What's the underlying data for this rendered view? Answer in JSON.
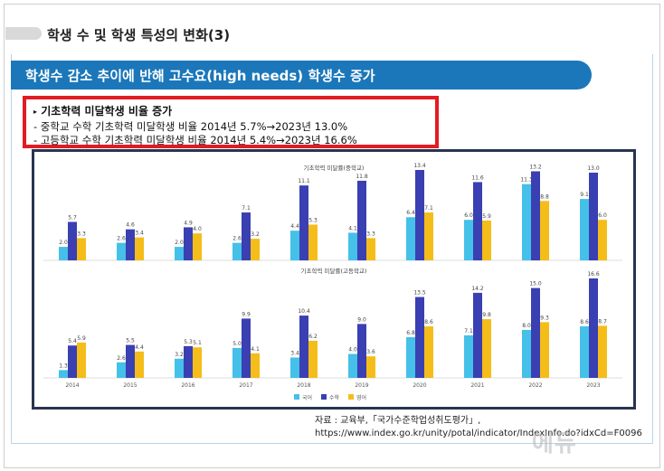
{
  "page": {
    "title": "학생 수 및 학생 특성의 변화(3)",
    "banner": "학생수 감소 추이에 반해 고수요(high needs) 학생수 증가"
  },
  "highlight": {
    "heading": "기초학력 미달학생 비율 증가",
    "line1": "- 중학교 수학 기초학력 미달학생 비율 2014년 5.7%→2023년 13.0%",
    "line2": "- 고등학교 수학 기초학력 미달학생 비율 2014년 5.4%→2023년 16.6%"
  },
  "source": {
    "line1": "자료 : 교육부,「국가수준학업성취도평가」,",
    "line2": "https://www.index.go.kr/unity/potal/indicator/IndexInfo.do?idxCd=F0096"
  },
  "watermark": "에듀",
  "colors": {
    "korean": "#45c0e8",
    "math": "#3a3fb2",
    "english": "#f5bd1a",
    "banner": "#1b77b9",
    "highlight_border": "#e31b23"
  },
  "chart_data": [
    {
      "type": "bar",
      "title": "기초학력 미달률(중학교)",
      "categories": [
        "2014",
        "2015",
        "2016",
        "2017",
        "2018",
        "2019",
        "2020",
        "2021",
        "2022",
        "2023"
      ],
      "series": [
        {
          "name": "국어",
          "values": [
            2.0,
            2.6,
            2.0,
            2.6,
            4.4,
            4.1,
            6.4,
            6.0,
            11.3,
            9.1
          ]
        },
        {
          "name": "수학",
          "values": [
            5.7,
            4.6,
            4.9,
            7.1,
            11.1,
            11.8,
            13.4,
            11.6,
            13.2,
            13.0
          ]
        },
        {
          "name": "영어",
          "values": [
            3.3,
            3.4,
            4.0,
            3.2,
            5.3,
            3.3,
            7.1,
            5.9,
            8.8,
            6.0
          ]
        }
      ]
    },
    {
      "type": "bar",
      "title": "기초학력 미달률(고등학교)",
      "categories": [
        "2014",
        "2015",
        "2016",
        "2017",
        "2018",
        "2019",
        "2020",
        "2021",
        "2022",
        "2023"
      ],
      "series": [
        {
          "name": "국어",
          "values": [
            1.3,
            2.6,
            3.2,
            5.0,
            3.4,
            4.0,
            6.8,
            7.1,
            8.0,
            8.6
          ]
        },
        {
          "name": "수학",
          "values": [
            5.4,
            5.5,
            5.3,
            9.9,
            10.4,
            9.0,
            13.5,
            14.2,
            15.0,
            16.6
          ]
        },
        {
          "name": "영어",
          "values": [
            5.9,
            4.4,
            5.1,
            4.1,
            6.2,
            3.6,
            8.6,
            9.8,
            9.3,
            8.7
          ]
        }
      ],
      "legend": "bottom"
    }
  ]
}
